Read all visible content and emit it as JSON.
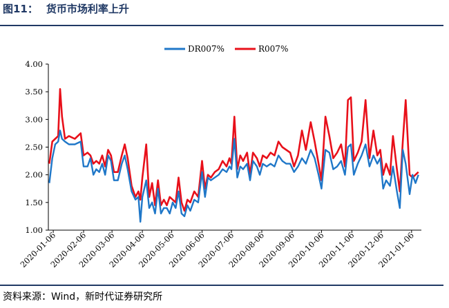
{
  "header": {
    "figure_number": "图11：",
    "title": "货币市场利率上升"
  },
  "source": {
    "text": "资料来源：Wind，新时代证券研究所"
  },
  "chart_data": {
    "type": "line",
    "x_tick_labels": [
      "2020-01-06",
      "2020-02-06",
      "2020-03-06",
      "2020-04-06",
      "2020-05-06",
      "2020-06-06",
      "2020-07-06",
      "2020-08-06",
      "2020-09-06",
      "2020-10-06",
      "2020-11-06",
      "2020-12-06",
      "2021-01-06"
    ],
    "y_tick_labels": [
      "1.00",
      "1.50",
      "2.00",
      "2.50",
      "3.00",
      "3.50",
      "4.00"
    ],
    "ylim": [
      1.0,
      4.0
    ],
    "legend_position": "top-center",
    "grid": false,
    "series": [
      {
        "name": "DR007%",
        "color": "#1f77c8",
        "points": [
          [
            "2020-01-02",
            1.85
          ],
          [
            "2020-01-05",
            2.3
          ],
          [
            "2020-01-08",
            2.55
          ],
          [
            "2020-01-11",
            2.6
          ],
          [
            "2020-01-13",
            2.8
          ],
          [
            "2020-01-15",
            2.65
          ],
          [
            "2020-01-18",
            2.6
          ],
          [
            "2020-01-22",
            2.55
          ],
          [
            "2020-01-28",
            2.55
          ],
          [
            "2020-02-03",
            2.6
          ],
          [
            "2020-02-06",
            2.15
          ],
          [
            "2020-02-10",
            2.15
          ],
          [
            "2020-02-13",
            2.3
          ],
          [
            "2020-02-16",
            2.0
          ],
          [
            "2020-02-19",
            2.1
          ],
          [
            "2020-02-22",
            2.05
          ],
          [
            "2020-02-25",
            2.2
          ],
          [
            "2020-02-28",
            2.0
          ],
          [
            "2020-03-02",
            2.35
          ],
          [
            "2020-03-05",
            2.25
          ],
          [
            "2020-03-08",
            1.9
          ],
          [
            "2020-03-12",
            1.9
          ],
          [
            "2020-03-16",
            2.2
          ],
          [
            "2020-03-19",
            2.35
          ],
          [
            "2020-03-22",
            2.1
          ],
          [
            "2020-03-26",
            1.7
          ],
          [
            "2020-03-30",
            1.55
          ],
          [
            "2020-04-02",
            1.6
          ],
          [
            "2020-04-04",
            1.15
          ],
          [
            "2020-04-06",
            1.6
          ],
          [
            "2020-04-10",
            1.9
          ],
          [
            "2020-04-13",
            1.4
          ],
          [
            "2020-04-16",
            1.5
          ],
          [
            "2020-04-19",
            1.3
          ],
          [
            "2020-04-22",
            1.75
          ],
          [
            "2020-04-25",
            1.3
          ],
          [
            "2020-04-28",
            1.4
          ],
          [
            "2020-05-01",
            1.4
          ],
          [
            "2020-05-04",
            1.3
          ],
          [
            "2020-05-07",
            1.5
          ],
          [
            "2020-05-10",
            1.4
          ],
          [
            "2020-05-13",
            1.7
          ],
          [
            "2020-05-16",
            1.3
          ],
          [
            "2020-05-19",
            1.25
          ],
          [
            "2020-05-22",
            1.45
          ],
          [
            "2020-05-25",
            1.35
          ],
          [
            "2020-05-29",
            1.55
          ],
          [
            "2020-06-02",
            1.5
          ],
          [
            "2020-06-06",
            2.05
          ],
          [
            "2020-06-09",
            1.6
          ],
          [
            "2020-06-12",
            1.95
          ],
          [
            "2020-06-15",
            1.9
          ],
          [
            "2020-06-19",
            1.95
          ],
          [
            "2020-06-23",
            2.0
          ],
          [
            "2020-06-27",
            2.1
          ],
          [
            "2020-07-01",
            2.05
          ],
          [
            "2020-07-04",
            2.15
          ],
          [
            "2020-07-06",
            2.1
          ],
          [
            "2020-07-09",
            2.65
          ],
          [
            "2020-07-12",
            1.95
          ],
          [
            "2020-07-15",
            2.15
          ],
          [
            "2020-07-18",
            2.1
          ],
          [
            "2020-07-22",
            2.2
          ],
          [
            "2020-07-25",
            1.9
          ],
          [
            "2020-07-28",
            2.25
          ],
          [
            "2020-08-01",
            2.15
          ],
          [
            "2020-08-04",
            2.0
          ],
          [
            "2020-08-07",
            2.2
          ],
          [
            "2020-08-11",
            2.15
          ],
          [
            "2020-08-15",
            2.2
          ],
          [
            "2020-08-19",
            2.15
          ],
          [
            "2020-08-23",
            2.35
          ],
          [
            "2020-08-27",
            2.25
          ],
          [
            "2020-08-31",
            2.2
          ],
          [
            "2020-09-04",
            2.2
          ],
          [
            "2020-09-08",
            2.05
          ],
          [
            "2020-09-12",
            2.15
          ],
          [
            "2020-09-16",
            2.3
          ],
          [
            "2020-09-20",
            2.2
          ],
          [
            "2020-09-25",
            2.45
          ],
          [
            "2020-09-29",
            2.3
          ],
          [
            "2020-10-03",
            2.0
          ],
          [
            "2020-10-06",
            1.75
          ],
          [
            "2020-10-10",
            2.45
          ],
          [
            "2020-10-14",
            2.4
          ],
          [
            "2020-10-18",
            2.1
          ],
          [
            "2020-10-22",
            2.15
          ],
          [
            "2020-10-26",
            2.25
          ],
          [
            "2020-10-30",
            2.0
          ],
          [
            "2020-11-02",
            2.5
          ],
          [
            "2020-11-05",
            2.55
          ],
          [
            "2020-11-08",
            2.0
          ],
          [
            "2020-11-12",
            2.2
          ],
          [
            "2020-11-16",
            2.35
          ],
          [
            "2020-11-20",
            2.55
          ],
          [
            "2020-11-24",
            2.15
          ],
          [
            "2020-11-28",
            2.35
          ],
          [
            "2020-12-02",
            2.2
          ],
          [
            "2020-12-05",
            2.3
          ],
          [
            "2020-12-08",
            1.75
          ],
          [
            "2020-12-11",
            1.9
          ],
          [
            "2020-12-15",
            1.8
          ],
          [
            "2020-12-18",
            2.15
          ],
          [
            "2020-12-22",
            1.7
          ],
          [
            "2020-12-25",
            1.4
          ],
          [
            "2020-12-28",
            2.45
          ],
          [
            "2020-12-31",
            2.2
          ],
          [
            "2021-01-04",
            1.65
          ],
          [
            "2021-01-07",
            2.0
          ],
          [
            "2021-01-10",
            1.85
          ],
          [
            "2021-01-13",
            2.0
          ]
        ]
      },
      {
        "name": "R007%",
        "color": "#e8101a",
        "points": [
          [
            "2020-01-02",
            2.2
          ],
          [
            "2020-01-05",
            2.6
          ],
          [
            "2020-01-08",
            2.65
          ],
          [
            "2020-01-11",
            2.7
          ],
          [
            "2020-01-13",
            3.55
          ],
          [
            "2020-01-15",
            3.05
          ],
          [
            "2020-01-18",
            2.65
          ],
          [
            "2020-01-22",
            2.7
          ],
          [
            "2020-01-28",
            2.65
          ],
          [
            "2020-02-03",
            2.75
          ],
          [
            "2020-02-06",
            2.35
          ],
          [
            "2020-02-10",
            2.4
          ],
          [
            "2020-02-13",
            2.35
          ],
          [
            "2020-02-16",
            2.2
          ],
          [
            "2020-02-19",
            2.25
          ],
          [
            "2020-02-22",
            2.2
          ],
          [
            "2020-02-25",
            2.35
          ],
          [
            "2020-02-28",
            2.15
          ],
          [
            "2020-03-02",
            2.45
          ],
          [
            "2020-03-05",
            2.35
          ],
          [
            "2020-03-08",
            2.05
          ],
          [
            "2020-03-12",
            2.05
          ],
          [
            "2020-03-16",
            2.35
          ],
          [
            "2020-03-19",
            2.55
          ],
          [
            "2020-03-22",
            2.3
          ],
          [
            "2020-03-26",
            1.8
          ],
          [
            "2020-03-30",
            1.6
          ],
          [
            "2020-04-02",
            1.7
          ],
          [
            "2020-04-04",
            1.55
          ],
          [
            "2020-04-06",
            1.95
          ],
          [
            "2020-04-10",
            2.55
          ],
          [
            "2020-04-13",
            1.6
          ],
          [
            "2020-04-16",
            1.85
          ],
          [
            "2020-04-19",
            1.45
          ],
          [
            "2020-04-22",
            1.9
          ],
          [
            "2020-04-25",
            1.45
          ],
          [
            "2020-04-28",
            1.55
          ],
          [
            "2020-05-01",
            1.45
          ],
          [
            "2020-05-04",
            1.6
          ],
          [
            "2020-05-07",
            1.55
          ],
          [
            "2020-05-10",
            1.5
          ],
          [
            "2020-05-13",
            1.95
          ],
          [
            "2020-05-16",
            1.5
          ],
          [
            "2020-05-19",
            1.35
          ],
          [
            "2020-05-22",
            1.55
          ],
          [
            "2020-05-25",
            1.5
          ],
          [
            "2020-05-29",
            1.7
          ],
          [
            "2020-06-02",
            1.6
          ],
          [
            "2020-06-06",
            2.25
          ],
          [
            "2020-06-09",
            1.75
          ],
          [
            "2020-06-12",
            2.0
          ],
          [
            "2020-06-15",
            1.95
          ],
          [
            "2020-06-19",
            2.05
          ],
          [
            "2020-06-23",
            2.1
          ],
          [
            "2020-06-27",
            2.25
          ],
          [
            "2020-07-01",
            2.15
          ],
          [
            "2020-07-04",
            2.3
          ],
          [
            "2020-07-06",
            2.2
          ],
          [
            "2020-07-09",
            3.05
          ],
          [
            "2020-07-12",
            2.1
          ],
          [
            "2020-07-15",
            2.35
          ],
          [
            "2020-07-18",
            2.25
          ],
          [
            "2020-07-22",
            2.4
          ],
          [
            "2020-07-25",
            2.0
          ],
          [
            "2020-07-28",
            2.4
          ],
          [
            "2020-08-01",
            2.3
          ],
          [
            "2020-08-04",
            2.15
          ],
          [
            "2020-08-07",
            2.35
          ],
          [
            "2020-08-11",
            2.3
          ],
          [
            "2020-08-15",
            2.4
          ],
          [
            "2020-08-19",
            2.35
          ],
          [
            "2020-08-23",
            2.6
          ],
          [
            "2020-08-27",
            2.5
          ],
          [
            "2020-08-31",
            2.45
          ],
          [
            "2020-09-04",
            2.4
          ],
          [
            "2020-09-08",
            2.15
          ],
          [
            "2020-09-12",
            2.35
          ],
          [
            "2020-09-16",
            2.8
          ],
          [
            "2020-09-20",
            2.45
          ],
          [
            "2020-09-25",
            2.95
          ],
          [
            "2020-09-29",
            2.6
          ],
          [
            "2020-10-03",
            2.2
          ],
          [
            "2020-10-06",
            1.9
          ],
          [
            "2020-10-10",
            3.05
          ],
          [
            "2020-10-14",
            2.7
          ],
          [
            "2020-10-18",
            2.3
          ],
          [
            "2020-10-22",
            2.4
          ],
          [
            "2020-10-26",
            2.55
          ],
          [
            "2020-10-30",
            2.15
          ],
          [
            "2020-11-02",
            3.35
          ],
          [
            "2020-11-05",
            3.4
          ],
          [
            "2020-11-08",
            2.25
          ],
          [
            "2020-11-12",
            2.4
          ],
          [
            "2020-11-16",
            2.6
          ],
          [
            "2020-11-20",
            3.35
          ],
          [
            "2020-11-24",
            2.3
          ],
          [
            "2020-11-28",
            2.8
          ],
          [
            "2020-12-02",
            2.35
          ],
          [
            "2020-12-05",
            2.45
          ],
          [
            "2020-12-08",
            2.0
          ],
          [
            "2020-12-11",
            2.2
          ],
          [
            "2020-12-15",
            2.0
          ],
          [
            "2020-12-18",
            2.7
          ],
          [
            "2020-12-22",
            2.1
          ],
          [
            "2020-12-25",
            1.7
          ],
          [
            "2020-12-28",
            2.6
          ],
          [
            "2020-12-31",
            3.35
          ],
          [
            "2021-01-04",
            2.0
          ],
          [
            "2021-01-07",
            1.95
          ],
          [
            "2021-01-10",
            2.0
          ],
          [
            "2021-01-13",
            2.05
          ]
        ]
      }
    ]
  }
}
